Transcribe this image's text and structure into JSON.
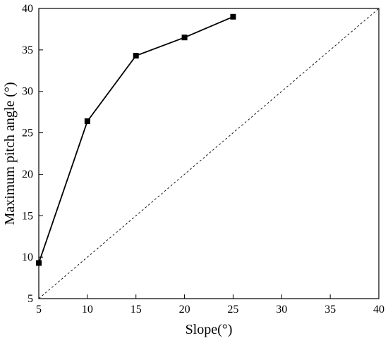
{
  "chart_data": {
    "type": "line",
    "title": "",
    "xlabel": "Slope(°)",
    "ylabel": "Maximum pitch angle (°)",
    "xlim": [
      5,
      40
    ],
    "ylim": [
      5,
      40
    ],
    "xticks": [
      5,
      10,
      15,
      20,
      25,
      30,
      35,
      40
    ],
    "yticks": [
      5,
      10,
      15,
      20,
      25,
      30,
      35,
      40
    ],
    "grid": false,
    "legend": "none",
    "series": [
      {
        "x": [
          5,
          10,
          15,
          20,
          25
        ],
        "y": [
          9.3,
          26.4,
          34.3,
          36.5,
          39.0
        ],
        "style": "solid",
        "marker": "square",
        "color": "#000000"
      },
      {
        "x": [
          5,
          40
        ],
        "y": [
          5,
          40
        ],
        "style": "dashed",
        "marker": "none",
        "color": "#000000"
      }
    ]
  }
}
